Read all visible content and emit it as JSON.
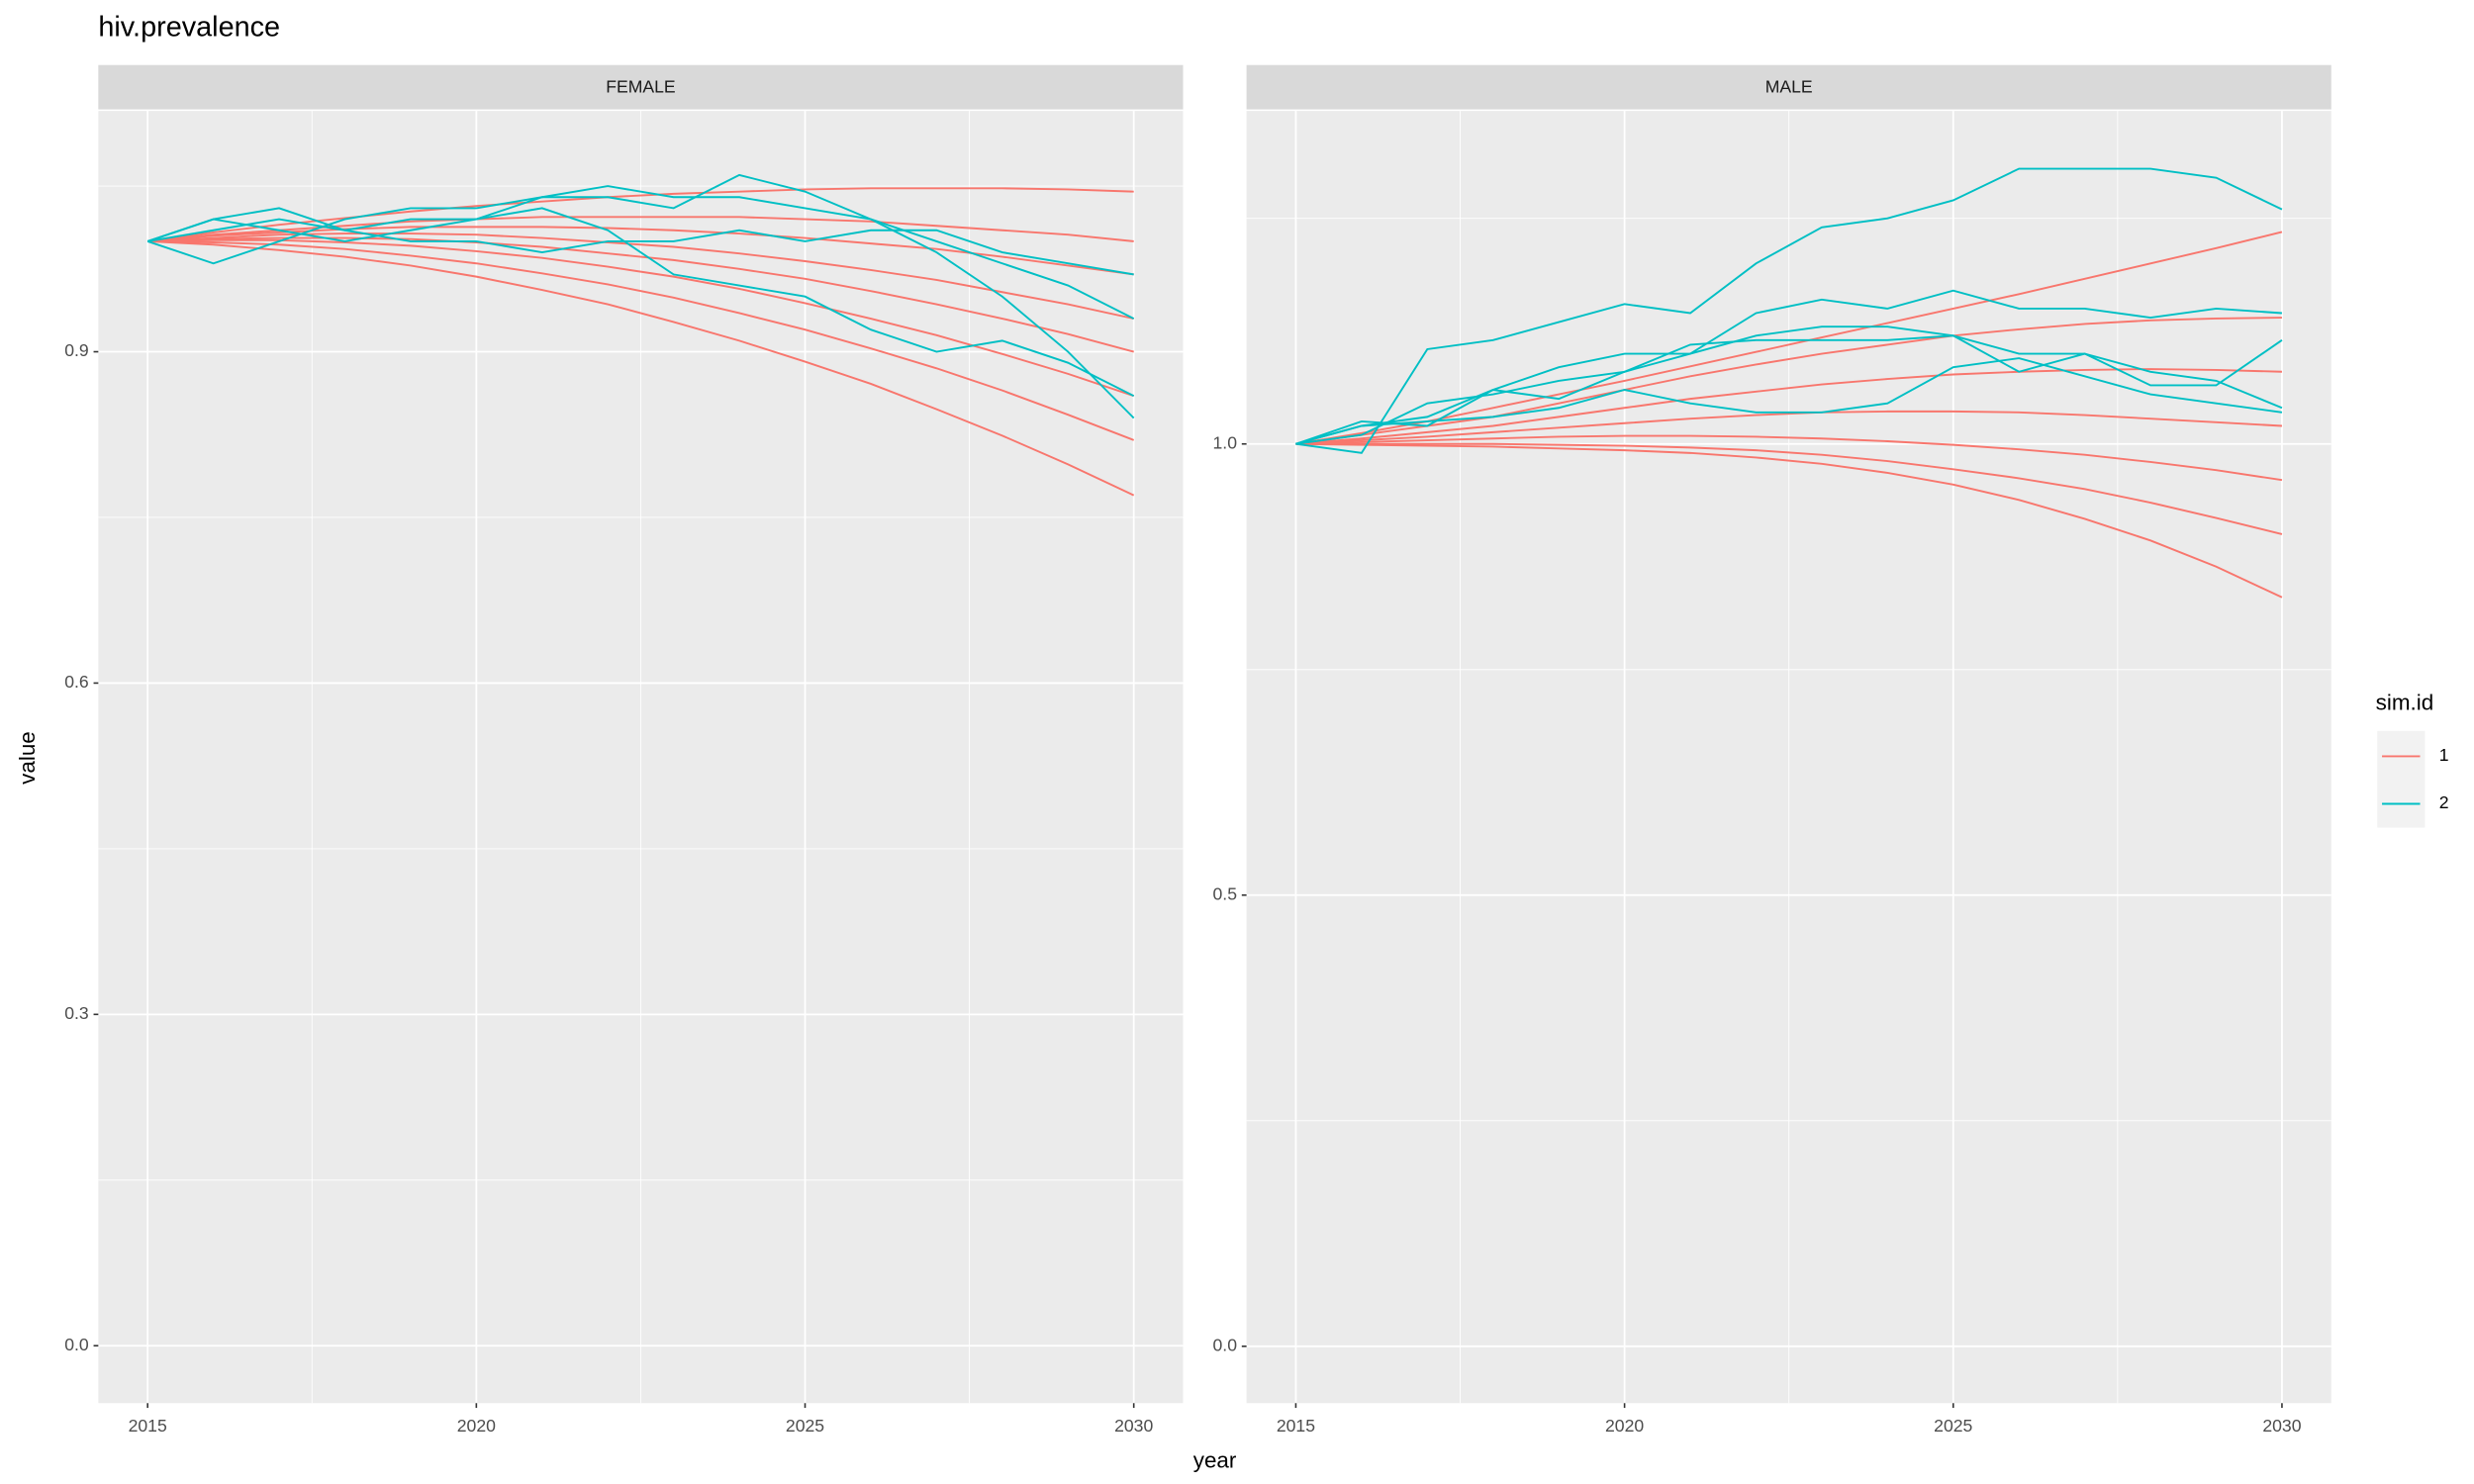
{
  "title": "hiv.prevalence",
  "x_label": "year",
  "y_label": "value",
  "legend_title": "sim.id",
  "legend_position": "right",
  "chart_data": [
    {
      "type": "line",
      "title": "FEMALE",
      "grid": true,
      "x": [
        2015,
        2016,
        2017,
        2018,
        2019,
        2020,
        2021,
        2022,
        2023,
        2024,
        2025,
        2026,
        2027,
        2028,
        2029,
        2030
      ],
      "xlim": [
        2014.25,
        2030.75
      ],
      "xticks": [
        2015,
        2020,
        2025,
        2030
      ],
      "ylim": [
        -0.052,
        1.118
      ],
      "yticks": [
        {
          "value": 0,
          "label": "0.0"
        },
        0.3,
        0.6,
        0.9
      ],
      "series": [
        {
          "name": "1",
          "color": "#F8766D",
          "values": [
            1,
            1.008,
            1.015,
            1.021,
            1.027,
            1.032,
            1.036,
            1.04,
            1.043,
            1.045,
            1.047,
            1.048,
            1.048,
            1.048,
            1.047,
            1.045
          ]
        },
        {
          "name": "1",
          "color": "#F8766D",
          "values": [
            1,
            1.006,
            1.01,
            1.014,
            1.018,
            1.02,
            1.022,
            1.022,
            1.022,
            1.022,
            1.02,
            1.018,
            1.014,
            1.01,
            1.006,
            1
          ]
        },
        {
          "name": "1",
          "color": "#F8766D",
          "values": [
            1,
            1.005,
            1.008,
            1.011,
            1.013,
            1.013,
            1.013,
            1.012,
            1.01,
            1.007,
            1.003,
            0.998,
            0.993,
            0.986,
            0.978,
            0.97
          ]
        },
        {
          "name": "1",
          "color": "#F8766D",
          "values": [
            1,
            1.003,
            1.006,
            1.007,
            1.007,
            1.006,
            1.003,
            0.999,
            0.995,
            0.989,
            0.982,
            0.974,
            0.965,
            0.954,
            0.943,
            0.93
          ]
        },
        {
          "name": "1",
          "color": "#F8766D",
          "values": [
            1,
            1.002,
            1.003,
            1.003,
            1.002,
            0.999,
            0.995,
            0.989,
            0.983,
            0.975,
            0.966,
            0.955,
            0.943,
            0.93,
            0.916,
            0.9
          ]
        },
        {
          "name": "1",
          "color": "#F8766D",
          "values": [
            1,
            1.001,
            1.001,
            0.999,
            0.996,
            0.991,
            0.985,
            0.977,
            0.968,
            0.957,
            0.944,
            0.93,
            0.915,
            0.898,
            0.88,
            0.86
          ]
        },
        {
          "name": "1",
          "color": "#F8766D",
          "values": [
            1,
            0.999,
            0.997,
            0.993,
            0.987,
            0.98,
            0.971,
            0.961,
            0.949,
            0.935,
            0.92,
            0.903,
            0.885,
            0.865,
            0.843,
            0.82
          ]
        },
        {
          "name": "1",
          "color": "#F8766D",
          "values": [
            1,
            0.997,
            0.992,
            0.986,
            0.978,
            0.968,
            0.956,
            0.943,
            0.927,
            0.91,
            0.891,
            0.871,
            0.848,
            0.824,
            0.798,
            0.77
          ]
        },
        {
          "name": "2",
          "color": "#00BFC4",
          "values": [
            1,
            0.98,
            1,
            1.02,
            1.03,
            1.03,
            1.04,
            1.05,
            1.04,
            1.04,
            1.03,
            1.02,
            1,
            0.98,
            0.96,
            0.93
          ]
        },
        {
          "name": "2",
          "color": "#00BFC4",
          "values": [
            1,
            1.02,
            1.03,
            1.01,
            1.02,
            1.02,
            1.04,
            1.04,
            1.03,
            1.06,
            1.045,
            1.02,
            0.99,
            0.95,
            0.9,
            0.84
          ]
        },
        {
          "name": "2",
          "color": "#00BFC4",
          "values": [
            1,
            1.01,
            1.02,
            1.01,
            1,
            1,
            0.99,
            1,
            1,
            1.01,
            1,
            1.01,
            1.01,
            0.99,
            0.98,
            0.97
          ]
        },
        {
          "name": "2",
          "color": "#00BFC4",
          "values": [
            1,
            1.02,
            1.01,
            1,
            1.01,
            1.02,
            1.03,
            1.01,
            0.97,
            0.96,
            0.95,
            0.92,
            0.9,
            0.91,
            0.89,
            0.86
          ]
        }
      ]
    },
    {
      "type": "line",
      "title": "MALE",
      "grid": true,
      "x": [
        2015,
        2016,
        2017,
        2018,
        2019,
        2020,
        2021,
        2022,
        2023,
        2024,
        2025,
        2026,
        2027,
        2028,
        2029,
        2030
      ],
      "xlim": [
        2014.25,
        2030.75
      ],
      "xticks": [
        2015,
        2020,
        2025,
        2030
      ],
      "ylim": [
        -0.063,
        1.369
      ],
      "yticks": [
        {
          "value": 0,
          "label": "0.0"
        },
        0.5,
        {
          "value": 1,
          "label": "1.0"
        }
      ],
      "series": [
        {
          "name": "1",
          "color": "#F8766D",
          "values": [
            1,
            1.012,
            1.025,
            1.04,
            1.055,
            1.07,
            1.086,
            1.102,
            1.118,
            1.134,
            1.15,
            1.166,
            1.183,
            1.2,
            1.217,
            1.235
          ]
        },
        {
          "name": "1",
          "color": "#F8766D",
          "values": [
            1,
            1.01,
            1.02,
            1.03,
            1.045,
            1.06,
            1.075,
            1.088,
            1.1,
            1.11,
            1.12,
            1.127,
            1.133,
            1.137,
            1.139,
            1.14
          ]
        },
        {
          "name": "1",
          "color": "#F8766D",
          "values": [
            1,
            1.006,
            1.013,
            1.02,
            1.03,
            1.04,
            1.05,
            1.058,
            1.066,
            1.072,
            1.077,
            1.08,
            1.082,
            1.083,
            1.082,
            1.08
          ]
        },
        {
          "name": "1",
          "color": "#F8766D",
          "values": [
            1,
            1.004,
            1.008,
            1.013,
            1.018,
            1.023,
            1.028,
            1.032,
            1.035,
            1.036,
            1.036,
            1.035,
            1.032,
            1.028,
            1.024,
            1.02
          ]
        },
        {
          "name": "1",
          "color": "#F8766D",
          "values": [
            1,
            1.002,
            1.004,
            1.006,
            1.008,
            1.009,
            1.009,
            1.008,
            1.006,
            1.003,
            0.999,
            0.994,
            0.988,
            0.98,
            0.971,
            0.96
          ]
        },
        {
          "name": "1",
          "color": "#F8766D",
          "values": [
            1,
            1,
            1,
            1,
            0.999,
            0.998,
            0.996,
            0.993,
            0.988,
            0.981,
            0.972,
            0.962,
            0.95,
            0.935,
            0.918,
            0.9
          ]
        },
        {
          "name": "1",
          "color": "#F8766D",
          "values": [
            1,
            0.999,
            0.998,
            0.997,
            0.995,
            0.993,
            0.99,
            0.985,
            0.978,
            0.968,
            0.955,
            0.938,
            0.917,
            0.893,
            0.864,
            0.83
          ]
        },
        {
          "name": "2",
          "color": "#00BFC4",
          "values": [
            1,
            0.99,
            1.105,
            1.115,
            1.135,
            1.155,
            1.145,
            1.2,
            1.24,
            1.25,
            1.27,
            1.305,
            1.305,
            1.305,
            1.295,
            1.26
          ]
        },
        {
          "name": "2",
          "color": "#00BFC4",
          "values": [
            1,
            1.025,
            1.02,
            1.06,
            1.085,
            1.1,
            1.1,
            1.145,
            1.16,
            1.15,
            1.17,
            1.15,
            1.15,
            1.14,
            1.15,
            1.145
          ]
        },
        {
          "name": "2",
          "color": "#00BFC4",
          "values": [
            1,
            1.02,
            1.03,
            1.06,
            1.05,
            1.08,
            1.1,
            1.12,
            1.13,
            1.13,
            1.12,
            1.1,
            1.1,
            1.08,
            1.07,
            1.04
          ]
        },
        {
          "name": "2",
          "color": "#00BFC4",
          "values": [
            1,
            1.01,
            1.045,
            1.055,
            1.07,
            1.08,
            1.11,
            1.115,
            1.115,
            1.115,
            1.12,
            1.08,
            1.1,
            1.065,
            1.065,
            1.115
          ]
        },
        {
          "name": "2",
          "color": "#00BFC4",
          "values": [
            1,
            1.02,
            1.025,
            1.03,
            1.04,
            1.06,
            1.045,
            1.035,
            1.035,
            1.045,
            1.085,
            1.095,
            1.075,
            1.055,
            1.045,
            1.035
          ]
        }
      ]
    }
  ]
}
